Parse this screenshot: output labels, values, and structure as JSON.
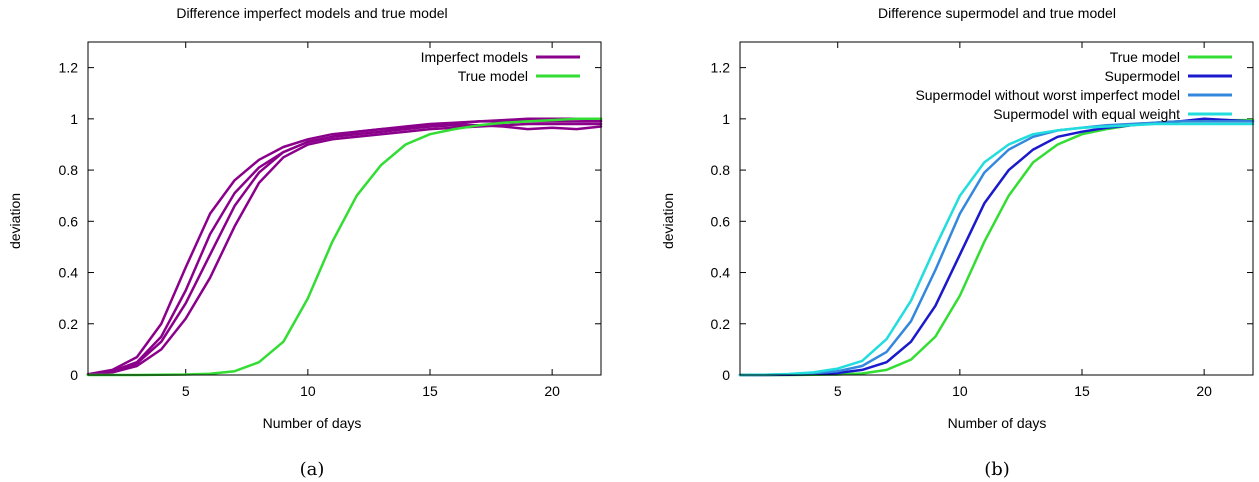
{
  "chart_data": [
    {
      "type": "line",
      "title": "Difference imperfect models and true model",
      "xlabel": "Number of days",
      "ylabel": "deviation",
      "caption": "(a)",
      "xlim": [
        1,
        22
      ],
      "ylim": [
        0,
        1.3
      ],
      "xticks": [
        5,
        10,
        15,
        20
      ],
      "yticks": [
        0,
        0.2,
        0.4,
        0.6,
        0.8,
        1,
        1.2
      ],
      "legend_position": "top-right",
      "legend": [
        {
          "label": "Imperfect models",
          "color": "#8b008b"
        },
        {
          "label": "True model",
          "color": "#33dd33"
        }
      ],
      "series": [
        {
          "group": "Imperfect models",
          "color": "#8b008b",
          "x": [
            1,
            2,
            3,
            4,
            5,
            6,
            7,
            8,
            9,
            10,
            11,
            12,
            13,
            14,
            15,
            16,
            17,
            18,
            19,
            20,
            21,
            22
          ],
          "y": [
            0.003,
            0.02,
            0.07,
            0.2,
            0.42,
            0.63,
            0.76,
            0.84,
            0.89,
            0.92,
            0.94,
            0.95,
            0.96,
            0.97,
            0.98,
            0.985,
            0.99,
            0.99,
            0.99,
            0.99,
            0.99,
            0.99
          ]
        },
        {
          "group": "Imperfect models",
          "color": "#8b008b",
          "x": [
            1,
            2,
            3,
            4,
            5,
            6,
            7,
            8,
            9,
            10,
            11,
            12,
            13,
            14,
            15,
            16,
            17,
            18,
            19,
            20,
            21,
            22
          ],
          "y": [
            0.002,
            0.015,
            0.05,
            0.15,
            0.33,
            0.55,
            0.71,
            0.81,
            0.87,
            0.91,
            0.93,
            0.95,
            0.96,
            0.965,
            0.97,
            0.975,
            0.975,
            0.97,
            0.96,
            0.965,
            0.96,
            0.97
          ]
        },
        {
          "group": "Imperfect models",
          "color": "#8b008b",
          "x": [
            1,
            2,
            3,
            4,
            5,
            6,
            7,
            8,
            9,
            10,
            11,
            12,
            13,
            14,
            15,
            16,
            17,
            18,
            19,
            20,
            21,
            22
          ],
          "y": [
            0.002,
            0.012,
            0.045,
            0.13,
            0.28,
            0.47,
            0.66,
            0.79,
            0.87,
            0.91,
            0.93,
            0.94,
            0.95,
            0.96,
            0.97,
            0.98,
            0.99,
            0.995,
            1.0,
            1.0,
            1.0,
            0.995
          ]
        },
        {
          "group": "Imperfect models",
          "color": "#8b008b",
          "x": [
            1,
            2,
            3,
            4,
            5,
            6,
            7,
            8,
            9,
            10,
            11,
            12,
            13,
            14,
            15,
            16,
            17,
            18,
            19,
            20,
            21,
            22
          ],
          "y": [
            0.001,
            0.01,
            0.035,
            0.1,
            0.22,
            0.38,
            0.58,
            0.75,
            0.85,
            0.9,
            0.92,
            0.93,
            0.94,
            0.95,
            0.96,
            0.965,
            0.97,
            0.975,
            0.98,
            0.98,
            0.98,
            0.98
          ]
        },
        {
          "group": "True model",
          "color": "#33dd33",
          "x": [
            1,
            2,
            3,
            4,
            5,
            6,
            7,
            8,
            9,
            10,
            11,
            12,
            13,
            14,
            15,
            16,
            17,
            18,
            19,
            20,
            21,
            22
          ],
          "y": [
            0.0,
            0.0,
            0.0,
            0.001,
            0.002,
            0.005,
            0.015,
            0.05,
            0.13,
            0.3,
            0.52,
            0.7,
            0.82,
            0.9,
            0.94,
            0.96,
            0.975,
            0.985,
            0.99,
            0.995,
            1.0,
            1.0
          ]
        }
      ]
    },
    {
      "type": "line",
      "title": "Difference supermodel and true model",
      "xlabel": "Number of days",
      "ylabel": "deviation",
      "caption": "(b)",
      "xlim": [
        1,
        22
      ],
      "ylim": [
        0,
        1.3
      ],
      "xticks": [
        5,
        10,
        15,
        20
      ],
      "yticks": [
        0,
        0.2,
        0.4,
        0.6,
        0.8,
        1,
        1.2
      ],
      "legend_position": "top-right",
      "legend": [
        {
          "label": "True model",
          "color": "#33dd33"
        },
        {
          "label": "Supermodel",
          "color": "#1a1acc"
        },
        {
          "label": "Supermodel without worst imperfect model",
          "color": "#3388dd"
        },
        {
          "label": "Supermodel with equal weight",
          "color": "#22dddd"
        }
      ],
      "series": [
        {
          "name": "True model",
          "color": "#33dd33",
          "x": [
            1,
            2,
            3,
            4,
            5,
            6,
            7,
            8,
            9,
            10,
            11,
            12,
            13,
            14,
            15,
            16,
            17,
            18,
            19,
            20,
            21,
            22
          ],
          "y": [
            0.0,
            0.0,
            0.0,
            0.001,
            0.002,
            0.006,
            0.02,
            0.06,
            0.15,
            0.31,
            0.52,
            0.7,
            0.83,
            0.9,
            0.94,
            0.96,
            0.975,
            0.985,
            0.99,
            0.995,
            0.995,
            0.995
          ]
        },
        {
          "name": "Supermodel",
          "color": "#1a1acc",
          "x": [
            1,
            2,
            3,
            4,
            5,
            6,
            7,
            8,
            9,
            10,
            11,
            12,
            13,
            14,
            15,
            16,
            17,
            18,
            19,
            20,
            21,
            22
          ],
          "y": [
            0.0,
            0.0,
            0.001,
            0.003,
            0.008,
            0.02,
            0.05,
            0.13,
            0.27,
            0.47,
            0.67,
            0.8,
            0.88,
            0.93,
            0.95,
            0.965,
            0.975,
            0.985,
            0.99,
            1.0,
            0.995,
            0.99
          ]
        },
        {
          "name": "Supermodel without worst imperfect model",
          "color": "#3388dd",
          "x": [
            1,
            2,
            3,
            4,
            5,
            6,
            7,
            8,
            9,
            10,
            11,
            12,
            13,
            14,
            15,
            16,
            17,
            18,
            19,
            20,
            21,
            22
          ],
          "y": [
            0.0,
            0.001,
            0.003,
            0.007,
            0.015,
            0.035,
            0.09,
            0.21,
            0.41,
            0.63,
            0.79,
            0.88,
            0.93,
            0.955,
            0.965,
            0.975,
            0.98,
            0.985,
            0.99,
            0.99,
            0.99,
            0.99
          ]
        },
        {
          "name": "Supermodel with equal weight",
          "color": "#22dddd",
          "x": [
            1,
            2,
            3,
            4,
            5,
            6,
            7,
            8,
            9,
            10,
            11,
            12,
            13,
            14,
            15,
            16,
            17,
            18,
            19,
            20,
            21,
            22
          ],
          "y": [
            0.0,
            0.001,
            0.004,
            0.01,
            0.025,
            0.055,
            0.14,
            0.29,
            0.5,
            0.7,
            0.83,
            0.9,
            0.94,
            0.955,
            0.965,
            0.97,
            0.975,
            0.98,
            0.98,
            0.98,
            0.98,
            0.98
          ]
        }
      ]
    }
  ]
}
